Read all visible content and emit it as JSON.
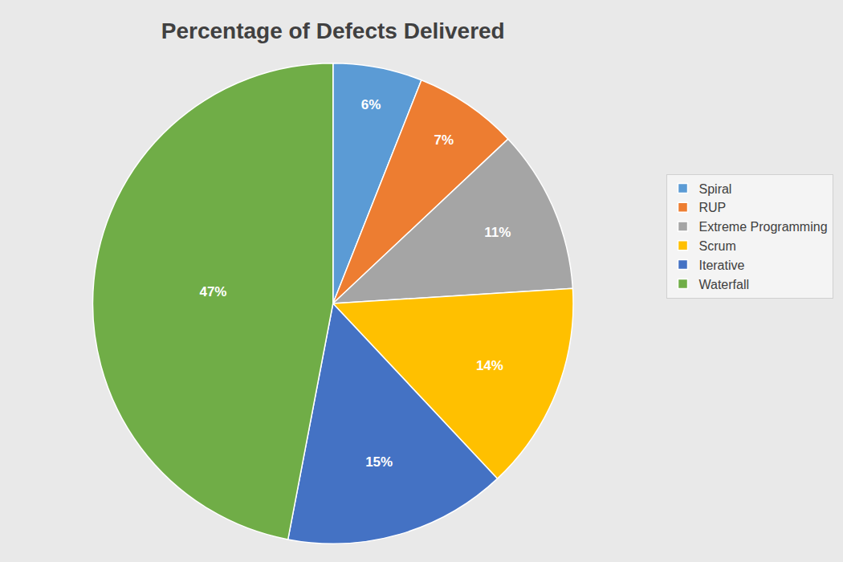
{
  "chart_data": {
    "type": "pie",
    "title": "Percentage of Defects Delivered",
    "categories": [
      "Spiral",
      "RUP",
      "Extreme Programming",
      "Scrum",
      "Iterative",
      "Waterfall"
    ],
    "values": [
      6,
      7,
      11,
      14,
      15,
      47
    ],
    "value_labels": [
      "6%",
      "7%",
      "11%",
      "14%",
      "15%",
      "47%"
    ],
    "colors": [
      "#5b9bd5",
      "#ed7d31",
      "#a5a5a5",
      "#ffc000",
      "#4472c4",
      "#70ad47"
    ],
    "data_labels": true,
    "legend": "right"
  }
}
